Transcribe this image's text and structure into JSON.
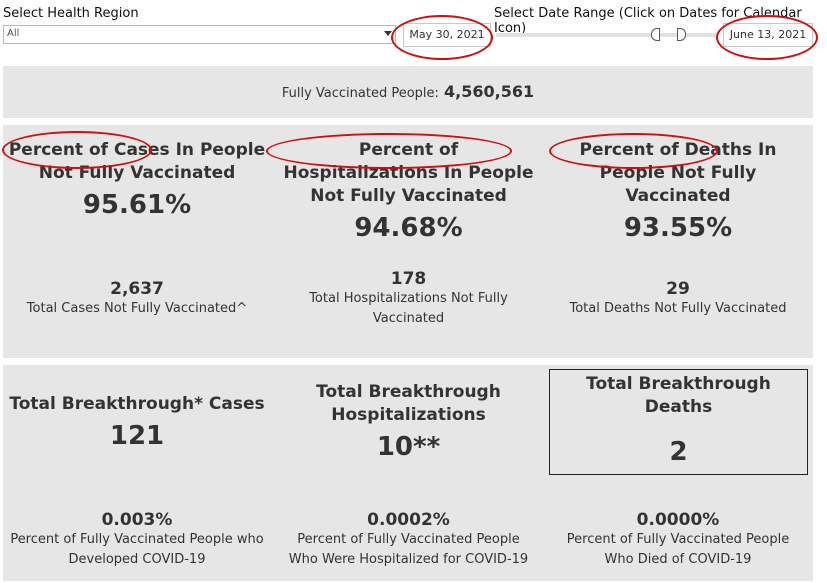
{
  "filters": {
    "region_label": "Select Health Region",
    "region_value": "All",
    "date_range_label": "Select Date Range (Click on Dates for Calendar Icon)",
    "start_date": "May 30, 2021",
    "end_date": "June 13, 2021"
  },
  "summary": {
    "label": "Fully Vaccinated People:",
    "value": "4,560,561"
  },
  "not_vaccinated": {
    "cases": {
      "title": "Percent of Cases In People Not Fully Vaccinated",
      "percent": "95.61%",
      "count": "2,637",
      "caption": "Total Cases Not Fully Vaccinated^"
    },
    "hospitalizations": {
      "title": "Percent of Hospitalizations In People Not Fully Vaccinated",
      "percent": "94.68%",
      "count": "178",
      "caption": "Total Hospitalizations Not Fully Vaccinated"
    },
    "deaths": {
      "title": "Percent of Deaths In People Not Fully Vaccinated",
      "percent": "93.55%",
      "count": "29",
      "caption": "Total Deaths Not Fully Vaccinated"
    }
  },
  "breakthrough": {
    "cases": {
      "title": "Total Breakthrough* Cases",
      "value": "121",
      "percent": "0.003%",
      "caption": "Percent of Fully Vaccinated People who Developed COVID-19"
    },
    "hospitalizations": {
      "title": "Total Breakthrough Hospitalizations",
      "value": "10**",
      "percent": "0.0002%",
      "caption": "Percent of Fully Vaccinated People Who Were Hospitalized for COVID-19"
    },
    "deaths": {
      "title": "Total Breakthrough Deaths",
      "value": "2",
      "percent": "0.0000%",
      "caption": "Percent of Fully Vaccinated People Who Died of COVID-19"
    }
  },
  "colors": {
    "panel": "#e6e6e6",
    "annotation": "#cc1111",
    "text": "#333333"
  }
}
